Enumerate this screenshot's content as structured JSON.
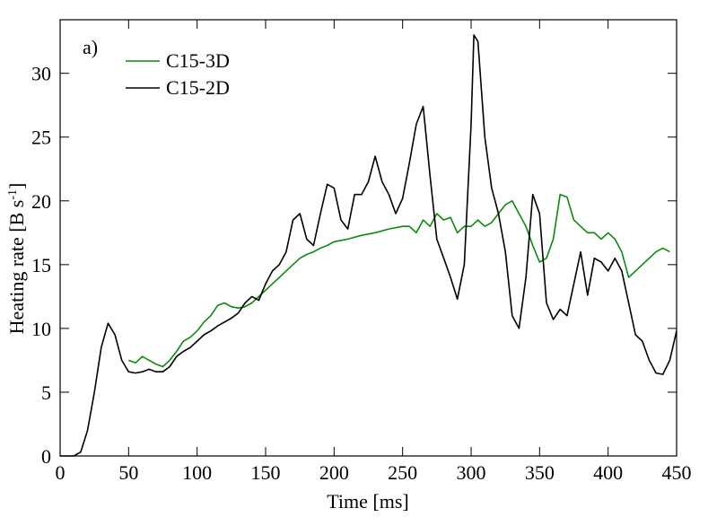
{
  "chart_data": {
    "type": "line",
    "annotation": "a)",
    "xlabel": "Time [ms]",
    "ylabel": "Heating rate [B s",
    "ylabel_sup": "-1",
    "ylabel_end": "]",
    "xlim": [
      0,
      450
    ],
    "ylim": [
      0,
      34.2
    ],
    "xticks": [
      0,
      50,
      100,
      150,
      200,
      250,
      300,
      350,
      400,
      450
    ],
    "yticks": [
      0,
      5,
      10,
      15,
      20,
      25,
      30
    ],
    "legend": "upper left",
    "series": [
      {
        "name": "C15-3D",
        "color": "#0a8c0a",
        "x": [
          50,
          55,
          60,
          65,
          70,
          75,
          80,
          85,
          90,
          95,
          100,
          105,
          110,
          115,
          120,
          125,
          130,
          135,
          140,
          145,
          150,
          155,
          160,
          165,
          170,
          175,
          180,
          185,
          190,
          195,
          200,
          210,
          220,
          230,
          240,
          250,
          255,
          260,
          265,
          270,
          275,
          280,
          285,
          290,
          295,
          300,
          305,
          310,
          315,
          320,
          325,
          330,
          335,
          340,
          345,
          350,
          355,
          360,
          365,
          370,
          375,
          380,
          385,
          390,
          395,
          400,
          405,
          410,
          415,
          420,
          425,
          430,
          435,
          440,
          445
        ],
        "values": [
          7.5,
          7.3,
          7.8,
          7.5,
          7.2,
          7.0,
          7.5,
          8.2,
          9,
          9.3,
          9.8,
          10.5,
          11,
          11.8,
          12,
          11.7,
          11.6,
          11.7,
          12,
          12.5,
          13,
          13.5,
          14,
          14.5,
          15,
          15.5,
          15.8,
          16,
          16.3,
          16.5,
          16.8,
          17,
          17.3,
          17.5,
          17.8,
          18,
          18,
          17.5,
          18.5,
          18,
          19,
          18.5,
          18.7,
          17.5,
          18,
          18,
          18.5,
          18,
          18.3,
          19,
          19.7,
          20,
          19,
          18,
          16.5,
          15.2,
          15.5,
          17,
          20.5,
          20.3,
          18.5,
          18,
          17.5,
          17.5,
          17,
          17.5,
          17,
          16,
          14,
          14.5,
          15,
          15.5,
          16,
          16.3,
          16
        ]
      },
      {
        "name": "C15-2D",
        "color": "#000000",
        "x": [
          0,
          10,
          15,
          20,
          25,
          30,
          35,
          40,
          45,
          50,
          55,
          60,
          65,
          70,
          75,
          80,
          85,
          90,
          95,
          100,
          105,
          110,
          115,
          120,
          125,
          130,
          135,
          140,
          145,
          150,
          155,
          160,
          165,
          170,
          175,
          180,
          185,
          190,
          195,
          200,
          205,
          210,
          215,
          220,
          225,
          230,
          235,
          240,
          245,
          250,
          255,
          260,
          265,
          270,
          275,
          280,
          285,
          290,
          295,
          300,
          302,
          305,
          310,
          315,
          320,
          325,
          330,
          335,
          340,
          345,
          350,
          355,
          360,
          365,
          370,
          375,
          380,
          385,
          390,
          395,
          400,
          405,
          410,
          415,
          420,
          425,
          430,
          435,
          440,
          445,
          450
        ],
        "values": [
          0,
          0,
          0.3,
          2,
          5,
          8.5,
          10.4,
          9.5,
          7.5,
          6.6,
          6.5,
          6.6,
          6.8,
          6.6,
          6.6,
          7,
          7.8,
          8.2,
          8.5,
          9,
          9.5,
          9.8,
          10.2,
          10.5,
          10.8,
          11.2,
          12,
          12.5,
          12.2,
          13.5,
          14.5,
          15,
          16,
          18.5,
          19,
          17,
          16.5,
          19,
          21.3,
          21,
          18.5,
          17.8,
          20.5,
          20.5,
          21.5,
          23.5,
          21.5,
          20.5,
          19,
          20.2,
          23,
          26,
          27.4,
          22,
          17,
          15.5,
          14,
          12.3,
          15,
          26,
          33,
          32.5,
          25,
          21,
          19,
          16,
          11,
          10,
          14,
          20.5,
          19,
          12,
          10.7,
          11.5,
          11,
          13.5,
          16,
          12.6,
          15.5,
          15.2,
          14.5,
          15.5,
          14.5,
          12,
          9.5,
          9,
          7.5,
          6.5,
          6.4,
          7.5,
          9.8
        ]
      }
    ]
  }
}
